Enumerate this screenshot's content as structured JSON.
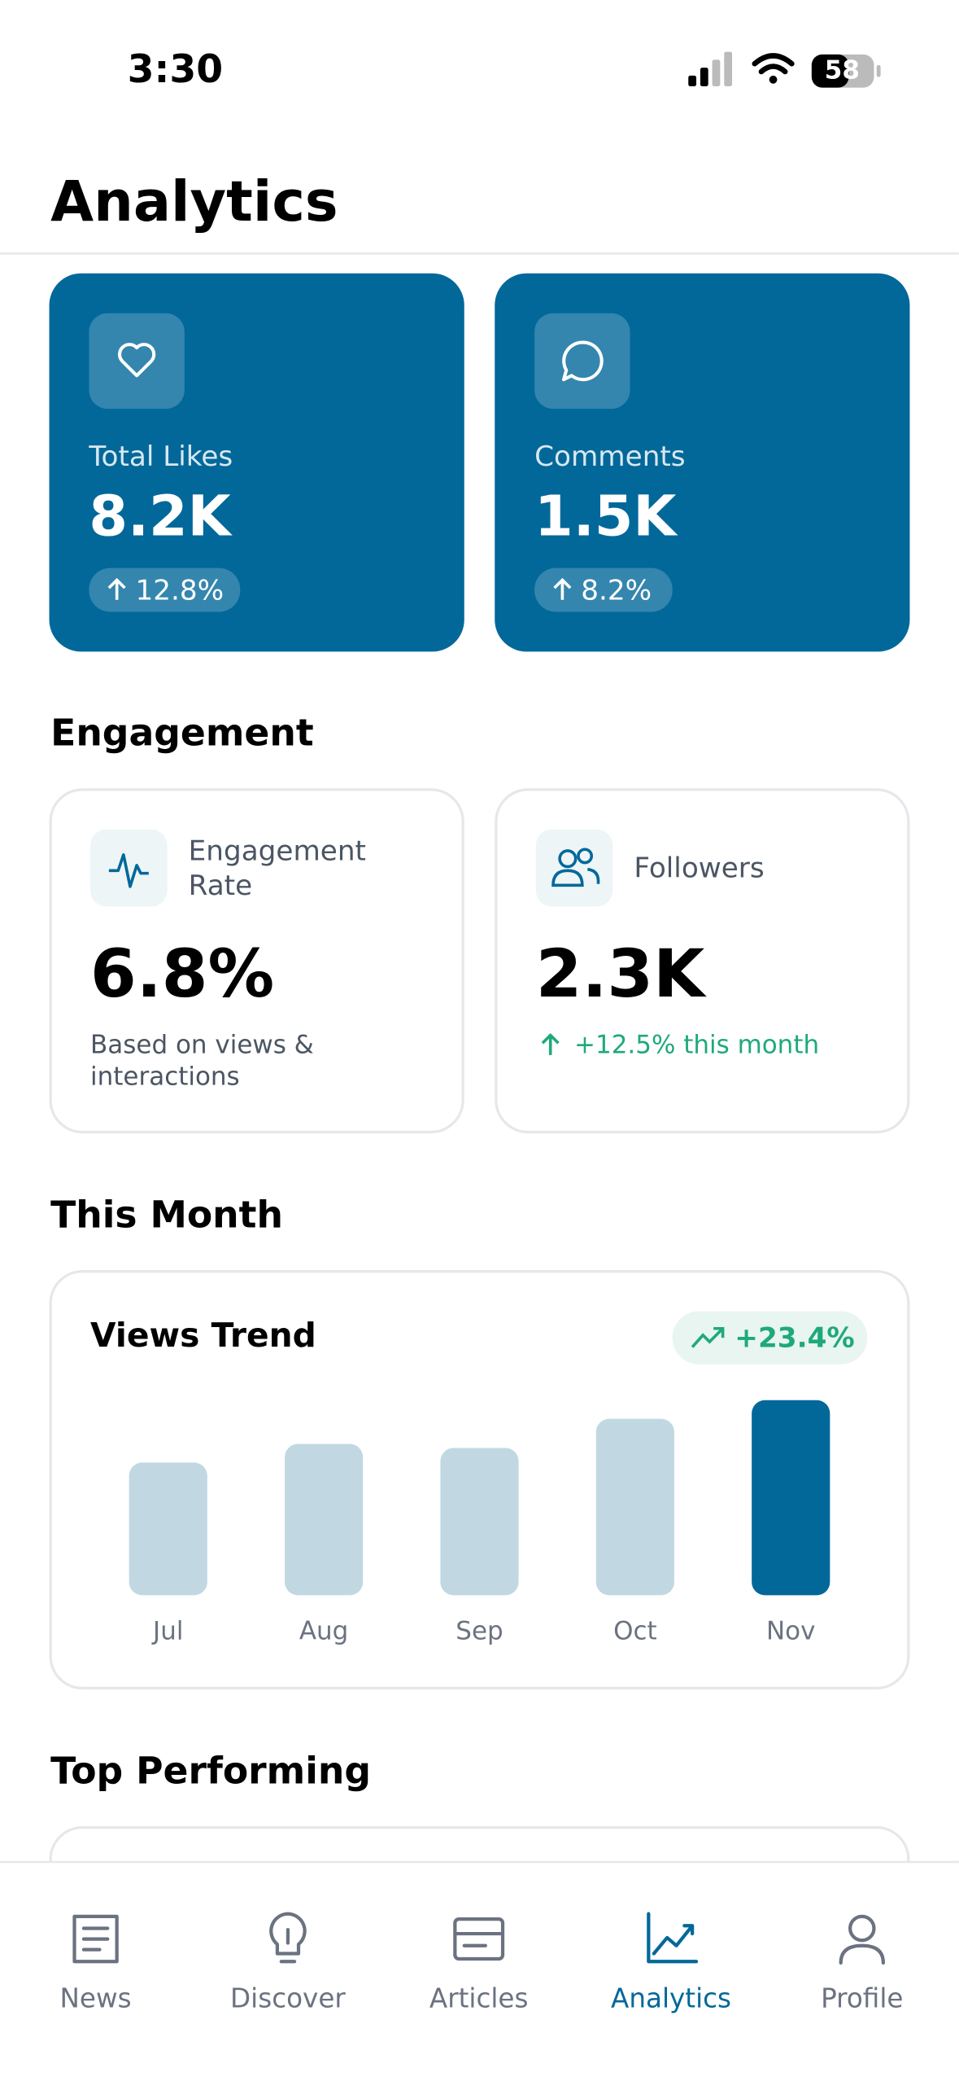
{
  "status_bar": {
    "time": "3:30",
    "battery": "58"
  },
  "header": {
    "title": "Analytics"
  },
  "stat_cards": [
    {
      "label": "Total Likes",
      "value": "8.2K",
      "change": "12.8%"
    },
    {
      "label": "Comments",
      "value": "1.5K",
      "change": "8.2%"
    }
  ],
  "engagement": {
    "title": "Engagement",
    "cards": [
      {
        "label_lines": [
          "Engagement",
          "Rate"
        ],
        "value": "6.8%",
        "note_lines": [
          "Based on views &",
          "interactions"
        ]
      },
      {
        "label_lines": [
          "Followers"
        ],
        "value": "2.3K",
        "note_lines": [
          "+12.5% this month"
        ]
      }
    ]
  },
  "this_month": {
    "title": "This Month",
    "views_trend": {
      "title": "Views Trend",
      "change": "+23.4%",
      "categories": [
        "Jul",
        "Aug",
        "Sep",
        "Oct",
        "Nov"
      ],
      "values": [
        100,
        114,
        111,
        133,
        147
      ],
      "color": "#c1d8e3",
      "highlight_color": "#02689a",
      "highlight_index": 4
    }
  },
  "top_performing": {
    "title": "Top Performing"
  },
  "tab_bar": {
    "items": [
      "News",
      "Discover",
      "Articles",
      "Analytics",
      "Profile"
    ],
    "active": 3
  }
}
